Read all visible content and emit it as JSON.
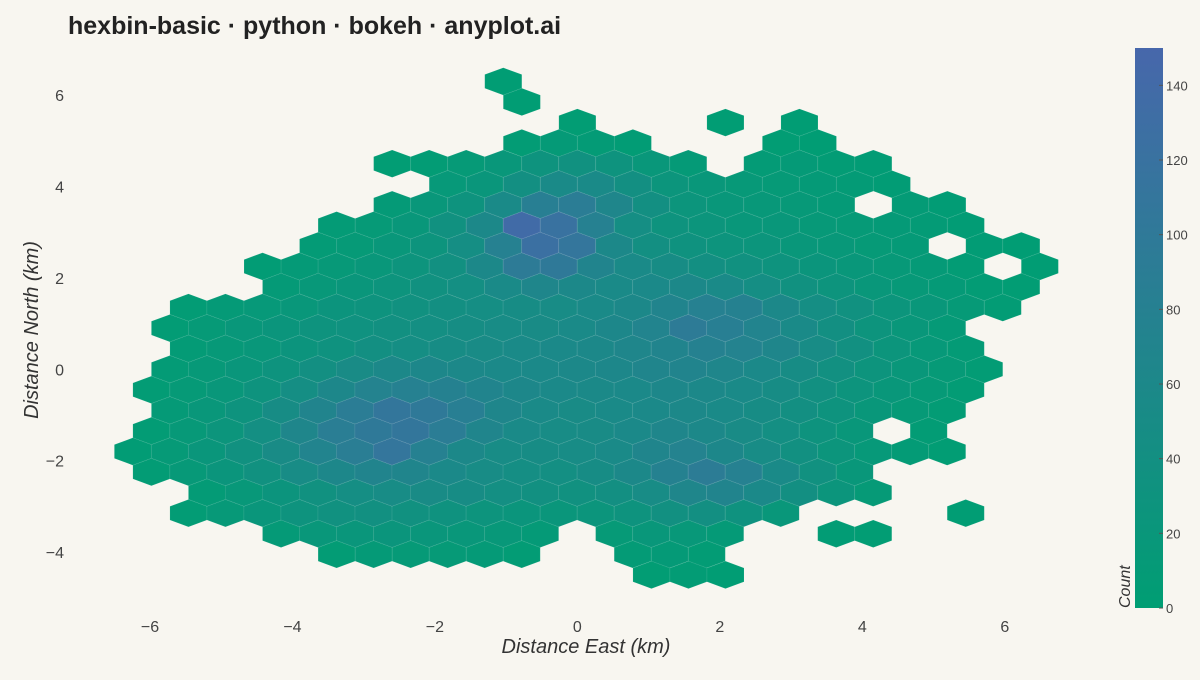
{
  "chart_data": {
    "type": "hexbin",
    "title": "hexbin-basic · python · bokeh · anyplot.ai",
    "x_label": "Distance East (km)",
    "y_label": "Distance North (km)",
    "colorbar_label": "Count",
    "xlim": [
      -6.8,
      7.0
    ],
    "ylim": [
      -5.05,
      6.9
    ],
    "xticks": [
      {
        "value": -6,
        "label": "−6"
      },
      {
        "value": -4,
        "label": "−4"
      },
      {
        "value": -2,
        "label": "−2"
      },
      0,
      2,
      4,
      6
    ],
    "yticks": [
      {
        "value": -4,
        "label": "−4"
      },
      {
        "value": -2,
        "label": "−2"
      },
      0,
      2,
      4,
      6
    ],
    "clim": [
      0,
      150
    ],
    "cticks": [
      0,
      20,
      40,
      60,
      80,
      100,
      120,
      140
    ],
    "color_low": "#009e73",
    "color_high": "#4767ab",
    "hex_size": 0.3,
    "rows": [
      {
        "y": 6.3,
        "x_start": -1.04,
        "values": [
          3
        ]
      },
      {
        "y": 5.85,
        "x_start": -0.78,
        "values": [
          2
        ]
      },
      {
        "y": 5.4,
        "x_start": 0,
        "values": [
          4,
          null,
          null,
          null,
          2,
          null,
          3
        ]
      },
      {
        "y": 4.95,
        "x_start": -0.78,
        "values": [
          6,
          10,
          8,
          5,
          null,
          null,
          null,
          4,
          3
        ]
      },
      {
        "y": 4.5,
        "x_start": -2.6,
        "values": [
          4,
          6,
          12,
          20,
          30,
          35,
          30,
          18,
          10,
          null,
          8,
          10,
          6,
          5
        ]
      },
      {
        "y": 4.05,
        "x_start": -1.82,
        "values": [
          15,
          22,
          40,
          55,
          55,
          40,
          25,
          18,
          14,
          12,
          10,
          8,
          5
        ]
      },
      {
        "y": 3.6,
        "x_start": -2.6,
        "values": [
          10,
          18,
          30,
          55,
          85,
          90,
          65,
          40,
          25,
          20,
          16,
          14,
          10,
          null,
          8,
          5
        ]
      },
      {
        "y": 3.15,
        "x_start": -3.38,
        "values": [
          8,
          12,
          20,
          35,
          60,
          138,
          120,
          80,
          45,
          30,
          25,
          20,
          18,
          14,
          12,
          10,
          8,
          5
        ]
      },
      {
        "y": 2.7,
        "x_start": -3.64,
        "values": [
          8,
          12,
          18,
          28,
          45,
          80,
          125,
          110,
          60,
          40,
          32,
          28,
          25,
          20,
          16,
          12,
          10,
          null,
          5,
          3
        ]
      },
      {
        "y": 2.25,
        "x_start": -4.42,
        "values": [
          5,
          10,
          14,
          20,
          28,
          38,
          60,
          95,
          100,
          70,
          55,
          48,
          40,
          35,
          30,
          24,
          18,
          14,
          10,
          6,
          null,
          3
        ]
      },
      {
        "y": 1.8,
        "x_start": -4.16,
        "values": [
          10,
          16,
          22,
          28,
          35,
          42,
          55,
          65,
          60,
          55,
          58,
          60,
          55,
          45,
          35,
          28,
          20,
          14,
          10,
          6,
          4
        ]
      },
      {
        "y": 1.35,
        "x_start": -5.46,
        "values": [
          6,
          10,
          15,
          20,
          26,
          30,
          35,
          40,
          45,
          48,
          50,
          55,
          60,
          70,
          80,
          78,
          60,
          45,
          35,
          25,
          18,
          12,
          6
        ]
      },
      {
        "y": 0.9,
        "x_start": -5.72,
        "values": [
          6,
          12,
          18,
          24,
          30,
          34,
          38,
          42,
          46,
          50,
          52,
          55,
          62,
          72,
          95,
          85,
          72,
          55,
          40,
          28,
          18,
          10
        ]
      },
      {
        "y": 0.45,
        "x_start": -5.46,
        "values": [
          8,
          14,
          20,
          26,
          32,
          40,
          45,
          48,
          52,
          55,
          58,
          60,
          65,
          70,
          78,
          75,
          65,
          50,
          38,
          25,
          15,
          8
        ]
      },
      {
        "y": 0,
        "x_start": -5.72,
        "values": [
          8,
          14,
          22,
          30,
          40,
          52,
          60,
          62,
          60,
          58,
          58,
          60,
          62,
          68,
          70,
          65,
          58,
          48,
          38,
          28,
          20,
          12,
          6
        ]
      },
      {
        "y": -0.45,
        "x_start": -5.98,
        "values": [
          6,
          12,
          20,
          30,
          45,
          62,
          75,
          80,
          78,
          70,
          62,
          58,
          56,
          58,
          62,
          60,
          55,
          48,
          38,
          28,
          20,
          12,
          6
        ]
      },
      {
        "y": -0.9,
        "x_start": -5.72,
        "values": [
          10,
          18,
          30,
          48,
          70,
          90,
          108,
          100,
          85,
          65,
          55,
          52,
          55,
          58,
          60,
          55,
          48,
          40,
          30,
          20,
          12,
          6
        ]
      },
      {
        "y": -1.35,
        "x_start": -5.98,
        "values": [
          6,
          14,
          25,
          42,
          65,
          88,
          100,
          108,
          90,
          68,
          55,
          50,
          52,
          58,
          65,
          60,
          52,
          42,
          30,
          20,
          null,
          6
        ]
      },
      {
        "y": -1.8,
        "x_start": -6.24,
        "values": [
          5,
          12,
          22,
          35,
          52,
          72,
          88,
          110,
          80,
          60,
          50,
          48,
          50,
          55,
          68,
          75,
          62,
          50,
          38,
          25,
          15,
          8,
          4
        ]
      },
      {
        "y": -2.25,
        "x_start": -5.98,
        "values": [
          6,
          14,
          24,
          36,
          50,
          62,
          70,
          68,
          58,
          50,
          45,
          42,
          48,
          60,
          78,
          92,
          80,
          55,
          35,
          18
        ]
      },
      {
        "y": -2.7,
        "x_start": -5.2,
        "values": [
          8,
          16,
          26,
          36,
          45,
          50,
          52,
          48,
          42,
          38,
          36,
          40,
          50,
          65,
          70,
          58,
          40,
          25,
          12
        ]
      },
      {
        "y": -3.15,
        "x_start": -5.46,
        "values": [
          6,
          14,
          22,
          30,
          36,
          38,
          36,
          32,
          28,
          24,
          22,
          25,
          30,
          38,
          40,
          32,
          20,
          null,
          null,
          null,
          null,
          3
        ]
      },
      {
        "y": -3.6,
        "x_start": -4.16,
        "values": [
          10,
          18,
          22,
          24,
          22,
          20,
          16,
          10,
          null,
          12,
          18,
          16,
          10,
          null,
          null,
          5,
          4
        ]
      },
      {
        "y": -4.05,
        "x_start": -3.38,
        "values": [
          6,
          10,
          12,
          12,
          10,
          6,
          null,
          null,
          8,
          10,
          6
        ]
      },
      {
        "y": -4.5,
        "x_start": 1.04,
        "values": [
          4,
          6,
          3
        ]
      }
    ]
  }
}
